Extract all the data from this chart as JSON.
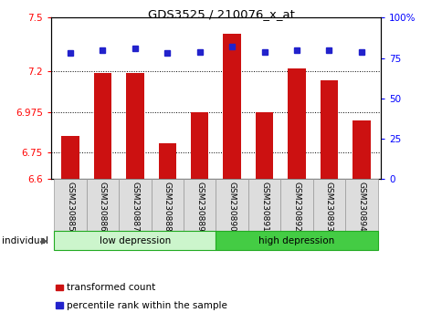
{
  "title": "GDS3525 / 210076_x_at",
  "samples": [
    "GSM230885",
    "GSM230886",
    "GSM230887",
    "GSM230888",
    "GSM230889",
    "GSM230890",
    "GSM230891",
    "GSM230892",
    "GSM230893",
    "GSM230894"
  ],
  "red_values": [
    6.84,
    7.19,
    7.19,
    6.8,
    6.975,
    7.41,
    6.975,
    7.22,
    7.15,
    6.93
  ],
  "blue_values": [
    78,
    80,
    81,
    78,
    79,
    82,
    79,
    80,
    80,
    79
  ],
  "groups": [
    {
      "label": "low depression",
      "start": 0,
      "end": 5,
      "color": "#ccf5cc"
    },
    {
      "label": "high depression",
      "start": 5,
      "end": 10,
      "color": "#44cc44"
    }
  ],
  "ylim_left": [
    6.6,
    7.5
  ],
  "ylim_right": [
    0,
    100
  ],
  "yticks_left": [
    6.6,
    6.75,
    6.975,
    7.2,
    7.5
  ],
  "yticks_right": [
    0,
    25,
    50,
    75,
    100
  ],
  "ytick_labels_left": [
    "6.6",
    "6.75",
    "6.975",
    "7.2",
    "7.5"
  ],
  "ytick_labels_right": [
    "0",
    "25",
    "50",
    "75",
    "100%"
  ],
  "grid_lines": [
    6.75,
    6.975,
    7.2
  ],
  "bar_color": "#cc1111",
  "dot_color": "#2222cc",
  "bar_width": 0.55,
  "individual_label": "individual",
  "legend_red": "transformed count",
  "legend_blue": "percentile rank within the sample",
  "cell_color": "#dddddd",
  "cell_edge": "#999999",
  "group_edge": "#22aa22"
}
